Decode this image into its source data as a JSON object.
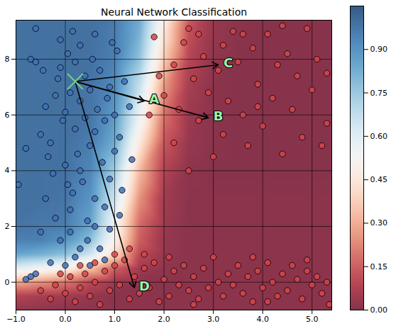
{
  "chart_data": {
    "type": "scatter",
    "title": "Neural Network Classification",
    "xlim": [
      -1,
      5.4
    ],
    "ylim": [
      -1,
      9.4
    ],
    "xticks": [
      -1,
      0,
      1,
      2,
      3,
      4,
      5
    ],
    "yticks": [
      0,
      2,
      4,
      6,
      8
    ],
    "grid": true,
    "series": [
      {
        "color": "#4170b8",
        "marker": "circle",
        "points": [
          [
            -0.95,
            3.5
          ],
          [
            -0.8,
            4.8
          ],
          [
            -0.7,
            8.0
          ],
          [
            -0.6,
            7.9
          ],
          [
            -0.5,
            5.3
          ],
          [
            -0.45,
            7.6
          ],
          [
            -0.4,
            6.3
          ],
          [
            -0.35,
            4.5
          ],
          [
            -0.3,
            5.0
          ],
          [
            -0.25,
            3.9
          ],
          [
            -0.2,
            6.7
          ],
          [
            -0.15,
            7.3
          ],
          [
            -0.1,
            8.7
          ],
          [
            -0.05,
            5.8
          ],
          [
            0.0,
            4.2
          ],
          [
            0.0,
            6.1
          ],
          [
            0.05,
            8.2
          ],
          [
            0.1,
            2.6
          ],
          [
            0.1,
            6.8
          ],
          [
            0.15,
            3.2
          ],
          [
            0.2,
            5.5
          ],
          [
            0.2,
            7.9
          ],
          [
            0.25,
            4.6
          ],
          [
            0.3,
            6.5
          ],
          [
            0.3,
            8.5
          ],
          [
            0.35,
            3.6
          ],
          [
            0.4,
            5.9
          ],
          [
            0.4,
            7.4
          ],
          [
            0.45,
            2.2
          ],
          [
            0.5,
            4.9
          ],
          [
            0.5,
            6.9
          ],
          [
            0.55,
            8.0
          ],
          [
            0.6,
            3.0
          ],
          [
            0.6,
            5.4
          ],
          [
            0.65,
            6.2
          ],
          [
            0.7,
            7.6
          ],
          [
            0.75,
            4.3
          ],
          [
            0.8,
            2.7
          ],
          [
            0.8,
            5.8
          ],
          [
            0.85,
            6.6
          ],
          [
            0.9,
            3.7
          ],
          [
            0.9,
            7.0
          ],
          [
            1.0,
            4.7
          ],
          [
            1.0,
            6.0
          ],
          [
            1.05,
            8.3
          ],
          [
            1.1,
            5.2
          ],
          [
            1.15,
            3.3
          ],
          [
            1.2,
            7.2
          ],
          [
            1.3,
            6.3
          ],
          [
            1.35,
            4.4
          ],
          [
            0.15,
            9.0
          ],
          [
            -0.6,
            9.1
          ],
          [
            0.6,
            8.9
          ],
          [
            0.3,
            1.2
          ],
          [
            0.1,
            1.8
          ],
          [
            0.45,
            1.5
          ],
          [
            0.6,
            2.0
          ],
          [
            0.7,
            1.2
          ],
          [
            -0.2,
            2.3
          ],
          [
            -0.4,
            3.0
          ],
          [
            -0.1,
            1.5
          ],
          [
            0.2,
            0.9
          ],
          [
            0.0,
            0.6
          ],
          [
            -0.3,
            0.7
          ],
          [
            -0.6,
            0.3
          ],
          [
            -0.7,
            0.2
          ],
          [
            -0.8,
            0.1
          ],
          [
            0.5,
            0.6
          ],
          [
            0.8,
            0.8
          ],
          [
            -0.5,
            1.8
          ],
          [
            0.9,
            1.9
          ],
          [
            1.1,
            2.4
          ],
          [
            0.3,
            4.0
          ],
          [
            0.05,
            3.5
          ],
          [
            -0.1,
            7.7
          ],
          [
            0.95,
            8.6
          ]
        ]
      },
      {
        "color": "#d6454a",
        "marker": "circle",
        "points": [
          [
            1.9,
            7.4
          ],
          [
            2.0,
            6.7
          ],
          [
            2.2,
            7.8
          ],
          [
            2.3,
            6.2
          ],
          [
            2.4,
            8.6
          ],
          [
            2.5,
            9.1
          ],
          [
            2.6,
            7.3
          ],
          [
            2.7,
            5.8
          ],
          [
            2.8,
            8.1
          ],
          [
            2.9,
            6.8
          ],
          [
            3.0,
            4.5
          ],
          [
            3.1,
            7.6
          ],
          [
            3.2,
            8.5
          ],
          [
            3.2,
            5.3
          ],
          [
            3.3,
            6.5
          ],
          [
            3.4,
            9.0
          ],
          [
            3.5,
            7.9
          ],
          [
            3.6,
            6.0
          ],
          [
            3.7,
            4.9
          ],
          [
            3.8,
            8.4
          ],
          [
            3.9,
            7.1
          ],
          [
            4.0,
            5.6
          ],
          [
            4.1,
            8.9
          ],
          [
            4.2,
            6.6
          ],
          [
            4.3,
            7.8
          ],
          [
            4.4,
            4.6
          ],
          [
            4.5,
            8.2
          ],
          [
            4.6,
            6.2
          ],
          [
            4.7,
            7.4
          ],
          [
            4.8,
            5.2
          ],
          [
            4.9,
            9.1
          ],
          [
            5.0,
            6.9
          ],
          [
            5.1,
            8.0
          ],
          [
            5.2,
            4.9
          ],
          [
            5.3,
            7.5
          ],
          [
            5.3,
            5.7
          ],
          [
            3.6,
            8.9
          ],
          [
            2.2,
            5.0
          ],
          [
            1.8,
            8.8
          ],
          [
            2.7,
            8.9
          ],
          [
            3.9,
            6.3
          ],
          [
            4.4,
            9.2
          ],
          [
            1.7,
            6.0
          ],
          [
            2.5,
            4.0
          ],
          [
            -0.5,
            -0.3
          ],
          [
            -0.3,
            -0.6
          ],
          [
            -0.2,
            -0.1
          ],
          [
            0.0,
            -0.4
          ],
          [
            0.1,
            0.2
          ],
          [
            0.2,
            -0.7
          ],
          [
            0.3,
            -0.2
          ],
          [
            0.4,
            0.3
          ],
          [
            0.5,
            -0.5
          ],
          [
            0.6,
            0.0
          ],
          [
            0.7,
            -0.8
          ],
          [
            0.8,
            0.4
          ],
          [
            0.9,
            -0.3
          ],
          [
            1.0,
            0.6
          ],
          [
            1.1,
            -0.1
          ],
          [
            1.2,
            0.8
          ],
          [
            1.3,
            -0.6
          ],
          [
            1.4,
            0.2
          ],
          [
            1.5,
            -0.4
          ],
          [
            1.6,
            0.5
          ],
          [
            1.7,
            -0.2
          ],
          [
            1.8,
            0.7
          ],
          [
            1.9,
            -0.7
          ],
          [
            2.0,
            0.1
          ],
          [
            2.1,
            -0.5
          ],
          [
            2.2,
            0.4
          ],
          [
            2.3,
            -0.1
          ],
          [
            2.4,
            0.6
          ],
          [
            2.5,
            -0.3
          ],
          [
            2.6,
            0.2
          ],
          [
            2.7,
            -0.6
          ],
          [
            2.8,
            0.5
          ],
          [
            2.9,
            -0.2
          ],
          [
            3.0,
            0.9
          ],
          [
            3.1,
            0.0
          ],
          [
            3.2,
            -0.5
          ],
          [
            3.3,
            0.3
          ],
          [
            3.4,
            -0.1
          ],
          [
            3.5,
            0.6
          ],
          [
            3.6,
            -0.4
          ],
          [
            3.7,
            0.2
          ],
          [
            3.8,
            -0.7
          ],
          [
            3.9,
            0.4
          ],
          [
            4.0,
            -0.2
          ],
          [
            4.1,
            0.7
          ],
          [
            4.2,
            0.0
          ],
          [
            4.3,
            -0.5
          ],
          [
            4.4,
            0.3
          ],
          [
            4.5,
            -0.3
          ],
          [
            4.6,
            0.6
          ],
          [
            4.7,
            0.1
          ],
          [
            4.8,
            -0.6
          ],
          [
            4.9,
            0.4
          ],
          [
            5.0,
            -0.1
          ],
          [
            5.1,
            0.2
          ],
          [
            5.2,
            -0.4
          ],
          [
            5.3,
            0.0
          ],
          [
            5.35,
            -0.8
          ],
          [
            1.3,
            1.2
          ],
          [
            1.0,
            1.0
          ],
          [
            0.6,
            0.7
          ],
          [
            2.1,
            0.9
          ],
          [
            1.6,
            1.0
          ],
          [
            3.8,
            0.9
          ],
          [
            4.9,
            0.8
          ],
          [
            0.3,
            0.6
          ],
          [
            -0.1,
            0.3
          ],
          [
            2.6,
            -0.8
          ],
          [
            4.1,
            -0.7
          ]
        ]
      }
    ],
    "heatmap": {
      "x": [
        -1,
        -0.5,
        0,
        0.5,
        1,
        1.5,
        2,
        2.5,
        3,
        3.5,
        4,
        4.5,
        5,
        5.5
      ],
      "y": [
        -1,
        -0.5,
        0,
        0.5,
        1,
        1.5,
        2,
        3,
        4,
        5,
        6,
        7,
        8,
        9,
        9.5
      ],
      "values": [
        [
          0.02,
          0.02,
          0.01,
          0.01,
          0.01,
          0.01,
          0.01,
          0.01,
          0.01,
          0.01,
          0.01,
          0.01,
          0.01,
          0.01
        ],
        [
          0.08,
          0.06,
          0.05,
          0.03,
          0.01,
          0.01,
          0.01,
          0.01,
          0.01,
          0.01,
          0.01,
          0.01,
          0.01,
          0.01
        ],
        [
          0.3,
          0.25,
          0.2,
          0.1,
          0.04,
          0.01,
          0.01,
          0.01,
          0.01,
          0.01,
          0.01,
          0.01,
          0.01,
          0.01
        ],
        [
          0.6,
          0.55,
          0.5,
          0.35,
          0.15,
          0.05,
          0.02,
          0.01,
          0.01,
          0.01,
          0.01,
          0.01,
          0.01,
          0.01
        ],
        [
          0.85,
          0.82,
          0.78,
          0.65,
          0.4,
          0.1,
          0.03,
          0.01,
          0.01,
          0.01,
          0.01,
          0.01,
          0.01,
          0.01
        ],
        [
          0.95,
          0.95,
          0.9,
          0.78,
          0.5,
          0.15,
          0.03,
          0.01,
          0.01,
          0.01,
          0.01,
          0.01,
          0.01,
          0.01
        ],
        [
          0.98,
          0.97,
          0.96,
          0.85,
          0.54,
          0.17,
          0.04,
          0.01,
          0.01,
          0.01,
          0.01,
          0.01,
          0.01,
          0.01
        ],
        [
          0.99,
          0.99,
          0.98,
          0.9,
          0.65,
          0.25,
          0.05,
          0.01,
          0.01,
          0.01,
          0.01,
          0.01,
          0.01,
          0.01
        ],
        [
          0.99,
          0.99,
          0.99,
          0.94,
          0.74,
          0.33,
          0.08,
          0.015,
          0.005,
          0.005,
          0.005,
          0.005,
          0.005,
          0.005
        ],
        [
          0.99,
          0.99,
          0.99,
          0.96,
          0.83,
          0.46,
          0.13,
          0.03,
          0.01,
          0.005,
          0.005,
          0.005,
          0.005,
          0.005
        ],
        [
          0.99,
          0.99,
          0.99,
          0.98,
          0.88,
          0.57,
          0.19,
          0.04,
          0.01,
          0.005,
          0.005,
          0.005,
          0.005,
          0.005
        ],
        [
          0.99,
          0.99,
          0.99,
          0.98,
          0.92,
          0.67,
          0.26,
          0.06,
          0.01,
          0.005,
          0.005,
          0.005,
          0.005,
          0.005
        ],
        [
          0.99,
          0.99,
          0.99,
          0.99,
          0.95,
          0.77,
          0.37,
          0.09,
          0.02,
          0.005,
          0.005,
          0.005,
          0.005,
          0.005
        ],
        [
          0.99,
          0.99,
          0.99,
          0.99,
          0.96,
          0.82,
          0.45,
          0.12,
          0.03,
          0.01,
          0.005,
          0.005,
          0.005,
          0.005
        ],
        [
          0.99,
          0.99,
          0.99,
          0.99,
          0.97,
          0.85,
          0.5,
          0.15,
          0.03,
          0.01,
          0.005,
          0.005,
          0.005,
          0.005
        ]
      ]
    },
    "colorbar": {
      "range": [
        0,
        1.05
      ],
      "ticks": [
        {
          "value": 0,
          "label": "0.00"
        },
        {
          "value": 0.15,
          "label": "0.15"
        },
        {
          "value": 0.3,
          "label": "0.30"
        },
        {
          "value": 0.45,
          "label": "0.45"
        },
        {
          "value": 0.6,
          "label": "0.60"
        },
        {
          "value": 0.75,
          "label": "0.75"
        },
        {
          "value": 0.9,
          "label": "0.90"
        }
      ]
    },
    "origin": {
      "x": 0.2,
      "y": 7.2,
      "marker": "x"
    },
    "annotations": [
      {
        "text": "A",
        "x": 1.6,
        "y": 6.5
      },
      {
        "text": "B",
        "x": 2.9,
        "y": 5.9
      },
      {
        "text": "C",
        "x": 3.1,
        "y": 7.8
      },
      {
        "text": "D",
        "x": 1.4,
        "y": -0.2
      }
    ]
  }
}
